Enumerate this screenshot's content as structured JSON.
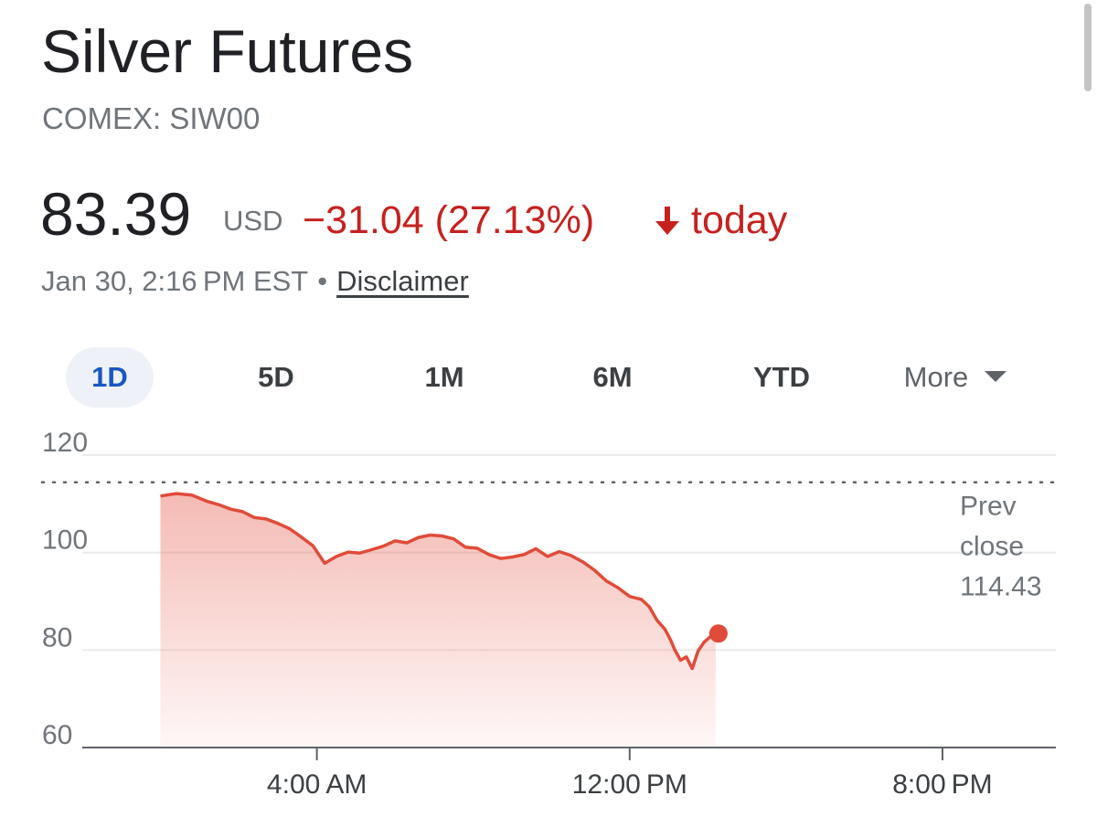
{
  "header": {
    "title": "Silver Futures",
    "subtitle": "COMEX: SIW00"
  },
  "quote": {
    "price": "83.39",
    "currency": "USD",
    "change": "−31.04 (27.13%)",
    "direction_icon": "arrow-down-icon",
    "period": "today",
    "timestamp": "Jan 30, 2:16 PM EST",
    "separator": "•",
    "disclaimer": "Disclaimer"
  },
  "tabs": [
    {
      "label": "1D",
      "active": true
    },
    {
      "label": "5D",
      "active": false
    },
    {
      "label": "1M",
      "active": false
    },
    {
      "label": "6M",
      "active": false
    },
    {
      "label": "YTD",
      "active": false
    },
    {
      "label": "More",
      "active": false
    }
  ],
  "colors": {
    "accent": "#1a56c4",
    "negative": "#c5221f",
    "line": "#e04b3a",
    "area_top": "#e8675a",
    "grid": "#ebebeb",
    "axis_text": "#70757a"
  },
  "chart_data": {
    "type": "area",
    "title": "",
    "xlabel": "",
    "ylabel": "",
    "ylim": [
      60,
      120
    ],
    "yticks": [
      {
        "value": 120,
        "label": "120"
      },
      {
        "value": 100,
        "label": "100"
      },
      {
        "value": 80,
        "label": "80"
      },
      {
        "value": 60,
        "label": "60"
      }
    ],
    "x_unit": "hours after midnight EST",
    "xlim": [
      -2,
      22.9
    ],
    "xticks": [
      {
        "value": 4,
        "label": "4:00 AM"
      },
      {
        "value": 12,
        "label": "12:00 PM"
      },
      {
        "value": 20,
        "label": "8:00 PM"
      }
    ],
    "reference_line": {
      "value": 114.43,
      "label_lines": [
        "Prev",
        "close",
        "114.43"
      ]
    },
    "series": [
      {
        "x": [
          0,
          0.4,
          0.8,
          1.2,
          1.5,
          1.8,
          2.1,
          2.4,
          2.7,
          3.0,
          3.3,
          3.6,
          3.9,
          4.2,
          4.5,
          4.8,
          5.1,
          5.4,
          5.7,
          6.0,
          6.3,
          6.6,
          6.9,
          7.2,
          7.5,
          7.8,
          8.1,
          8.4,
          8.7,
          9.0,
          9.3,
          9.6,
          9.9,
          10.2,
          10.5,
          10.8,
          11.1,
          11.4,
          11.7,
          12.0,
          12.3,
          12.5,
          12.7,
          12.9,
          13.05,
          13.15,
          13.3,
          13.45,
          13.6,
          13.75,
          13.9,
          14.0,
          14.1,
          14.2
        ],
        "y": [
          111.6,
          112.1,
          111.8,
          110.5,
          109.8,
          108.9,
          108.4,
          107.2,
          106.9,
          106.0,
          104.9,
          103.2,
          101.4,
          97.8,
          99.2,
          100.1,
          99.9,
          100.6,
          101.3,
          102.4,
          102.0,
          103.1,
          103.6,
          103.4,
          102.8,
          101.1,
          100.9,
          99.6,
          98.8,
          99.1,
          99.6,
          100.8,
          99.2,
          100.2,
          99.4,
          98.1,
          96.4,
          94.2,
          92.8,
          91.0,
          90.4,
          88.9,
          86.1,
          84.3,
          82.0,
          80.1,
          77.9,
          78.6,
          76.2,
          79.8,
          81.6,
          82.3,
          83.0,
          83.39
        ]
      }
    ],
    "last_value": 83.39,
    "grid": true
  }
}
